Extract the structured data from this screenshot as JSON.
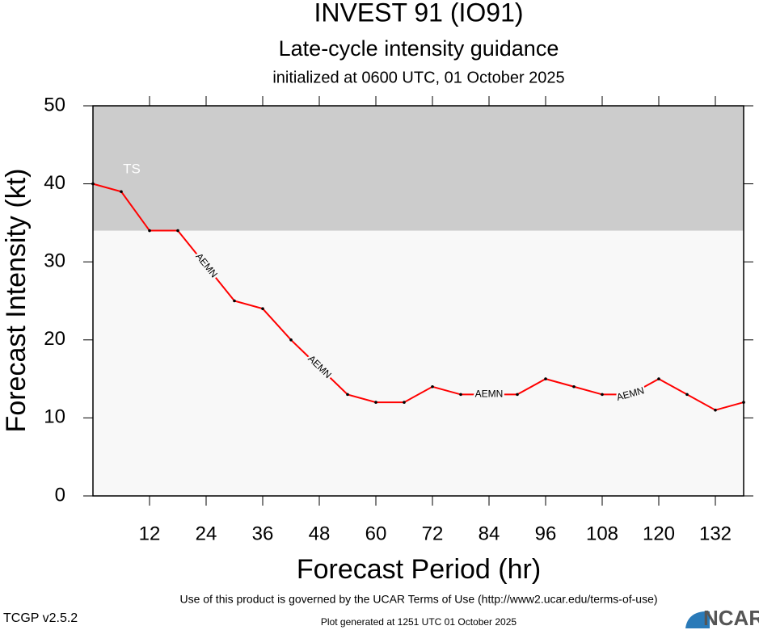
{
  "chart_data": {
    "type": "line",
    "title": "INVEST 91 (IO91)",
    "subtitle": "Late-cycle intensity guidance",
    "initialized": "initialized at 0600 UTC, 01 October 2025",
    "x_label": "Forecast Period (hr)",
    "y_label": "Forecast Intensity (kt)",
    "x": [
      0,
      6,
      12,
      18,
      24,
      30,
      36,
      42,
      48,
      54,
      60,
      66,
      72,
      78,
      84,
      90,
      96,
      102,
      108,
      114,
      120,
      126,
      132,
      138
    ],
    "series": [
      {
        "name": "AEMN",
        "color": "#ff0000",
        "values": [
          40,
          39,
          34,
          34,
          29.5,
          25,
          24,
          20,
          16.5,
          13,
          12,
          12,
          14,
          13,
          13,
          13,
          15,
          14,
          13,
          13,
          15,
          13,
          11,
          12
        ]
      }
    ],
    "xlim": [
      0,
      138
    ],
    "xticks": [
      12,
      24,
      36,
      48,
      60,
      72,
      84,
      96,
      108,
      120,
      132
    ],
    "ylim": [
      0,
      50
    ],
    "yticks": [
      0,
      10,
      20,
      30,
      40,
      50
    ],
    "bands": [
      {
        "label": "TS",
        "from": 34,
        "to": 50,
        "color": "#cccccc"
      }
    ],
    "background": "#f8f8f8"
  },
  "footer": {
    "terms": "Use of this product is governed by the UCAR Terms of Use (http://www2.ucar.edu/terms-of-use)",
    "version": "TCGP v2.5.2",
    "generated": "Plot generated at 1251 UTC   01 October 2025",
    "logo": "NCAR"
  }
}
